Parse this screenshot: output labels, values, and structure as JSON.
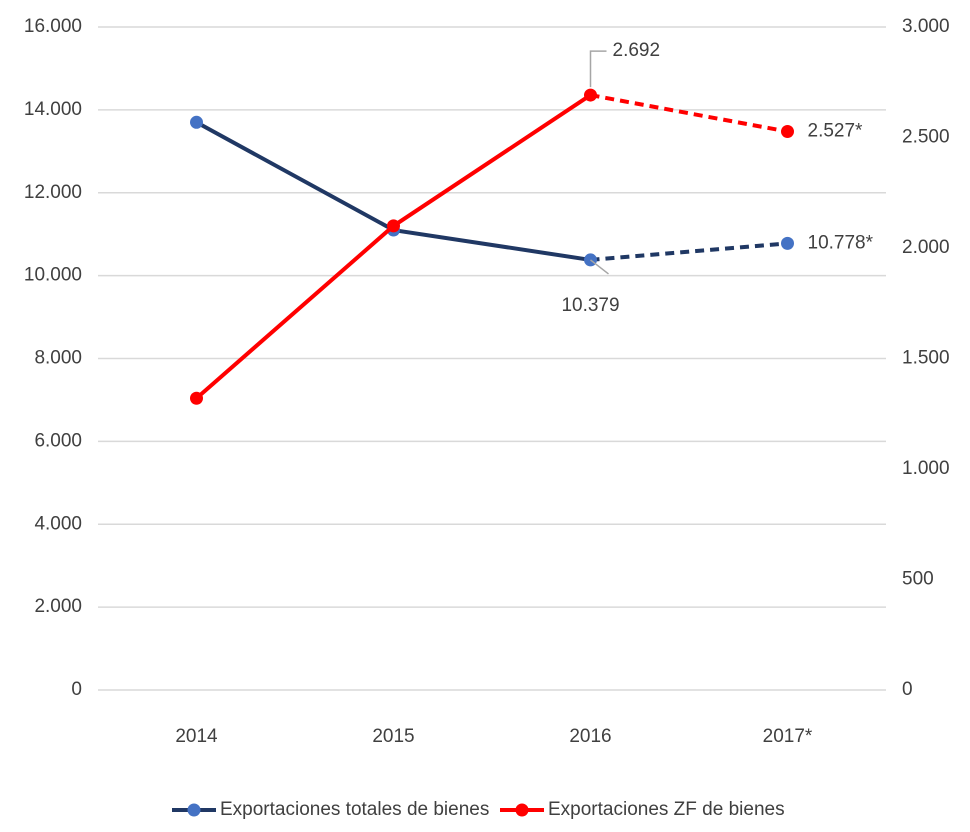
{
  "chart_data": {
    "type": "line",
    "categories": [
      "2014",
      "2015",
      "2016",
      "2017*"
    ],
    "series": [
      {
        "name": "Exportaciones totales de bienes",
        "color": "#203864",
        "marker_color": "#4472c4",
        "axis": "y",
        "values": [
          13700,
          11100,
          10379,
          10778
        ],
        "value_labels": [
          null,
          null,
          "10.379",
          "10.778*"
        ],
        "dashed_from": 2
      },
      {
        "name": "Exportaciones ZF de bienes",
        "color": "#ff0000",
        "marker_color": "#ff0000",
        "axis": "y2",
        "values": [
          1320,
          2100,
          2692,
          2527
        ],
        "value_labels": [
          null,
          null,
          "2.692",
          "2.527*"
        ],
        "dashed_from": 2
      }
    ],
    "ylim": [
      0,
      16000
    ],
    "yticks": [
      {
        "value": 0,
        "label": "0"
      },
      {
        "value": 2000,
        "label": "2.000"
      },
      {
        "value": 4000,
        "label": "4.000"
      },
      {
        "value": 6000,
        "label": "6.000"
      },
      {
        "value": 8000,
        "label": "8.000"
      },
      {
        "value": 10000,
        "label": "10.000"
      },
      {
        "value": 12000,
        "label": "12.000"
      },
      {
        "value": 14000,
        "label": "14.000"
      },
      {
        "value": 16000,
        "label": "16.000"
      }
    ],
    "y2lim": [
      0,
      3000
    ],
    "y2ticks": [
      {
        "value": 0,
        "label": "0"
      },
      {
        "value": 500,
        "label": "500"
      },
      {
        "value": 1000,
        "label": "1.000"
      },
      {
        "value": 1500,
        "label": "1.500"
      },
      {
        "value": 2000,
        "label": "2.000"
      },
      {
        "value": 2500,
        "label": "2.500"
      },
      {
        "value": 3000,
        "label": "3.000"
      }
    ],
    "grid": true,
    "legend": "bottom"
  }
}
